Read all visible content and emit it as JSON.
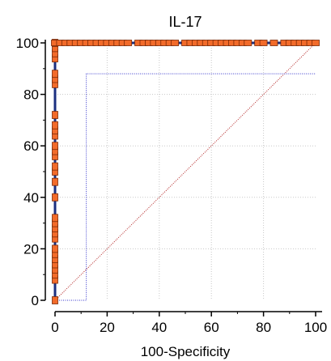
{
  "chart_data": {
    "type": "line",
    "title": "IL-17",
    "xlabel": "100-Specificity",
    "ylabel": "",
    "xlim": [
      0,
      100
    ],
    "ylim": [
      0,
      100
    ],
    "x_ticks": [
      "0",
      "20",
      "40",
      "60",
      "80",
      "100"
    ],
    "y_ticks": [
      "0",
      "20",
      "40",
      "60",
      "80",
      "100"
    ],
    "grid": true,
    "series": [
      {
        "role": "roc-curve",
        "points": [
          [
            0,
            0
          ],
          [
            0,
            100
          ],
          [
            100,
            100
          ]
        ]
      },
      {
        "role": "reference-diagonal",
        "points": [
          [
            0,
            0
          ],
          [
            100,
            100
          ]
        ]
      },
      {
        "role": "confidence-bounds",
        "lower": [
          [
            0,
            0
          ],
          [
            12,
            0
          ],
          [
            12,
            88
          ],
          [
            100,
            88
          ]
        ],
        "upper": [
          [
            0,
            0
          ],
          [
            0,
            100
          ],
          [
            100,
            100
          ]
        ]
      },
      {
        "role": "data-markers",
        "left_axis_y": [
          0,
          8,
          10,
          12,
          14,
          16,
          18,
          20,
          24,
          26,
          28,
          30,
          32,
          40,
          46,
          50,
          52,
          56,
          58,
          60,
          64,
          66,
          68,
          72,
          84,
          86,
          88,
          94,
          96,
          98,
          100
        ],
        "top_axis_x": [
          0,
          2,
          4,
          6,
          8,
          10,
          12,
          14,
          16,
          18,
          20,
          22,
          24,
          26,
          28,
          32,
          34,
          36,
          38,
          40,
          42,
          44,
          46,
          50,
          52,
          54,
          56,
          58,
          60,
          62,
          64,
          66,
          68,
          70,
          72,
          74,
          78,
          80,
          84,
          88,
          90,
          92,
          94,
          96,
          98,
          100
        ]
      }
    ],
    "colors": {
      "roc": "#1b2f80",
      "diagonal": "#b22222",
      "bounds": "#3333cc",
      "marker_fill": "#f26b2a",
      "marker_stroke": "#7a2a08",
      "grid": "#c8c8c8"
    }
  }
}
